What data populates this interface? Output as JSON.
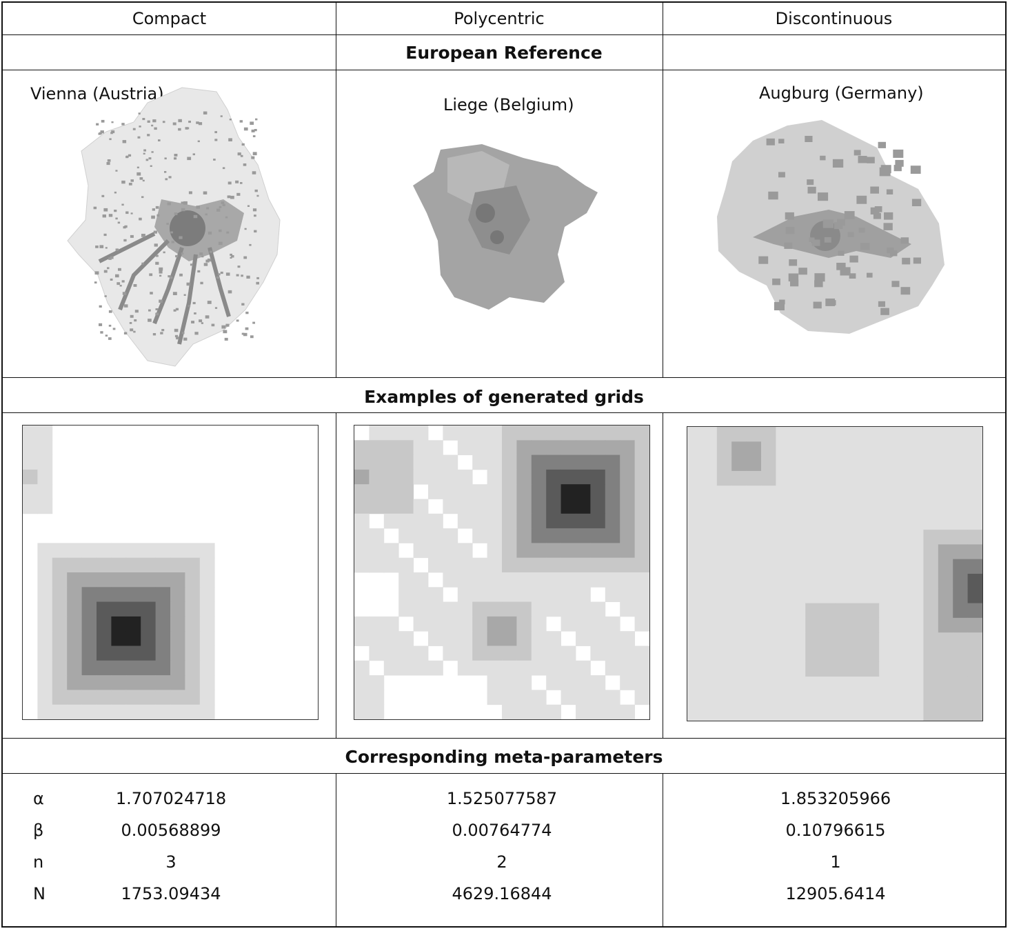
{
  "columns": [
    {
      "id": "compact",
      "label": "Compact"
    },
    {
      "id": "polycentric",
      "label": "Polycentric"
    },
    {
      "id": "discontinuous",
      "label": "Discontinuous"
    }
  ],
  "sections": {
    "reference_title": "European Reference",
    "grids_title": "Examples of generated grids",
    "params_title": "Corresponding meta-parameters"
  },
  "reference_cities": {
    "compact": "Vienna (Austria)",
    "polycentric": "Liege (Belgium)",
    "discontinuous": "Augburg (Germany)"
  },
  "parameters": {
    "symbols": [
      "α",
      "β",
      "n",
      "N"
    ],
    "compact": [
      "1.707024718",
      "0.00568899",
      "3",
      "1753.09434"
    ],
    "polycentric": [
      "1.525077587",
      "0.00764774",
      "2",
      "4629.16844"
    ],
    "discontinuous": [
      "1.853205966",
      "0.10796615",
      "1",
      "12905.6414"
    ]
  },
  "colors": {
    "border": "#111111",
    "level_1": "#e0e0e0",
    "level_2": "#c8c8c8",
    "level_3": "#a8a8a8",
    "level_4": "#808080",
    "level_5": "#5a5a5a",
    "level_6": "#222222"
  }
}
